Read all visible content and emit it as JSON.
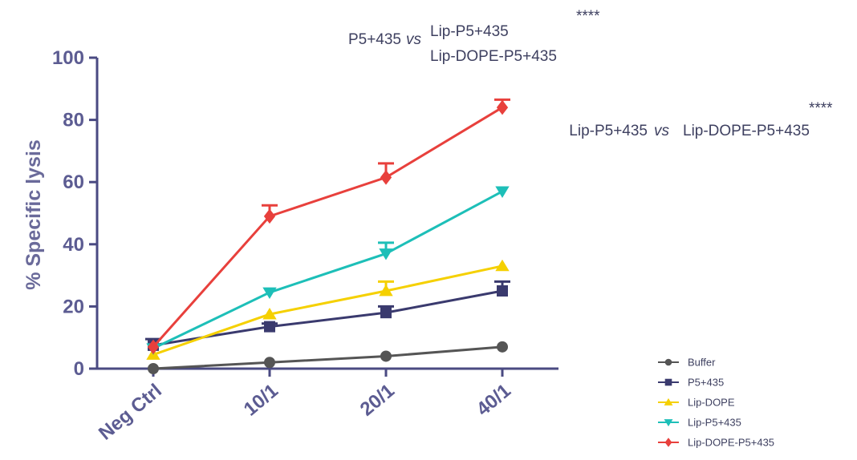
{
  "chart_data": {
    "type": "line",
    "ylabel": "% Specific lysis",
    "xlabel": "",
    "categories": [
      "Neg Ctrl",
      "10/1",
      "20/1",
      "40/1"
    ],
    "ylim": [
      0,
      100
    ],
    "yticks": [
      0,
      20,
      40,
      60,
      80,
      100
    ],
    "legend_position": "bottom-right",
    "series": [
      {
        "name": "Buffer",
        "color": "#555555",
        "marker": "circle",
        "values": [
          0,
          2,
          4,
          7
        ],
        "errors": [
          0,
          0,
          0,
          0
        ]
      },
      {
        "name": "P5+435",
        "color": "#3a3a6e",
        "marker": "square",
        "values": [
          7.5,
          13.5,
          18,
          25
        ],
        "errors": [
          2,
          1,
          2,
          3
        ]
      },
      {
        "name": "Lip-DOPE",
        "color": "#f5d000",
        "marker": "triangle-up",
        "values": [
          4.5,
          17.5,
          25,
          33
        ],
        "errors": [
          0,
          0,
          3,
          0
        ]
      },
      {
        "name": "Lip-P5+435",
        "color": "#1dbfb8",
        "marker": "triangle-down",
        "values": [
          6.5,
          24.5,
          37,
          57
        ],
        "errors": [
          0,
          0,
          3.5,
          0
        ]
      },
      {
        "name": "Lip-DOPE-P5+435",
        "color": "#e8403c",
        "marker": "diamond",
        "values": [
          7,
          49,
          61.5,
          84
        ],
        "errors": [
          0,
          3.5,
          4.5,
          2.5
        ]
      }
    ]
  },
  "annotations": {
    "comp1": {
      "stars": "****",
      "left": "P5+435",
      "vs": "vs",
      "right1": "Lip-P5+435",
      "right2": "Lip-DOPE-P5+435"
    },
    "comp2": {
      "stars": "****",
      "left": "Lip-P5+435",
      "vs": "vs",
      "right": "Lip-DOPE-P5+435"
    }
  }
}
